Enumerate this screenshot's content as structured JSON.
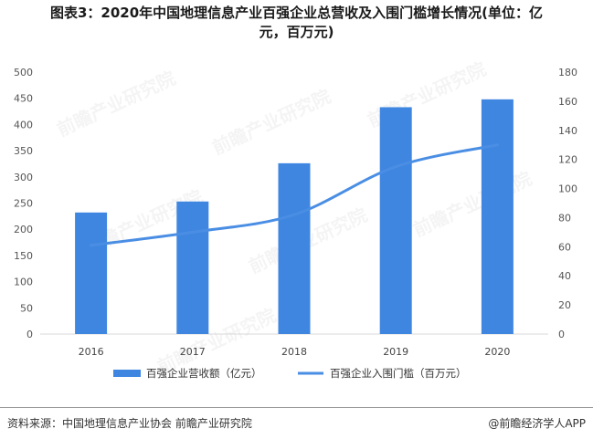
{
  "title_line1": "图表3：2020年中国地理信息产业百强企业总营收及入围门槛增长情况(单位：亿",
  "title_line2": "元，百万元)",
  "footer": {
    "source": "资料来源：中国地理信息产业协会 前瞻产业研究院",
    "credit": "@前瞻经济学人APP"
  },
  "watermark_text": "前瞻产业研究院",
  "chart_data": {
    "type": "bar+line",
    "categories": [
      "2016",
      "2017",
      "2018",
      "2019",
      "2020"
    ],
    "series": [
      {
        "name": "百强企业营收额（亿元）",
        "type": "bar",
        "axis": "left",
        "values": [
          232,
          253,
          326,
          433,
          448
        ],
        "color": "#3f86e1"
      },
      {
        "name": "百强企业入围门槛（百万元）",
        "type": "line",
        "axis": "right",
        "values": [
          61,
          70,
          82,
          115,
          130
        ],
        "color": "#4a8ee4"
      }
    ],
    "y_left": {
      "min": 0,
      "max": 500,
      "ticks": [
        "0",
        "50",
        "100",
        "150",
        "200",
        "250",
        "300",
        "350",
        "400",
        "450",
        "500"
      ]
    },
    "y_right": {
      "min": 0,
      "max": 180,
      "ticks": [
        "0",
        "20",
        "40",
        "60",
        "80",
        "100",
        "120",
        "140",
        "160",
        "180"
      ]
    },
    "grid": false,
    "legend_position": "bottom"
  }
}
